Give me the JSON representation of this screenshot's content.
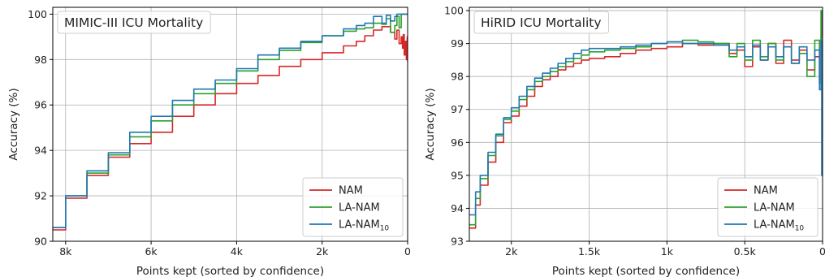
{
  "chart_data": [
    {
      "type": "line",
      "title": "MIMIC-III ICU Mortality",
      "xlabel": "Points kept (sorted by confidence)",
      "ylabel": "Accuracy (%)",
      "x_reversed": true,
      "xlim": [
        8300,
        0
      ],
      "ylim": [
        90,
        100.3
      ],
      "xticks": [
        8000,
        6000,
        4000,
        2000,
        0
      ],
      "xtick_labels": [
        "8k",
        "6k",
        "4k",
        "2k",
        "0"
      ],
      "yticks": [
        90,
        92,
        94,
        96,
        98,
        100
      ],
      "ytick_labels": [
        "90",
        "92",
        "94",
        "96",
        "98",
        "100"
      ],
      "grid": true,
      "legend_position": "lower-right",
      "series": [
        {
          "name": "NAM",
          "name_sub": "",
          "color": "#d62728",
          "x": [
            8300,
            8000,
            7500,
            7000,
            6500,
            6000,
            5500,
            5000,
            4500,
            4000,
            3500,
            3000,
            2500,
            2000,
            1500,
            1200,
            1000,
            800,
            600,
            400,
            300,
            250,
            200,
            150,
            120,
            100,
            80,
            50,
            30,
            10,
            0
          ],
          "y": [
            90.5,
            91.9,
            92.9,
            93.7,
            94.3,
            94.8,
            95.5,
            96.0,
            96.5,
            96.95,
            97.3,
            97.7,
            98.0,
            98.3,
            98.6,
            98.8,
            99.05,
            99.3,
            99.45,
            99.2,
            98.9,
            99.3,
            98.7,
            99.0,
            98.5,
            99.1,
            98.2,
            98.8,
            98.0,
            99.0,
            97.9
          ]
        },
        {
          "name": "LA-NAM",
          "name_sub": "",
          "color": "#2ca02c",
          "x": [
            8300,
            8000,
            7500,
            7000,
            6500,
            6000,
            5500,
            5000,
            4500,
            4000,
            3500,
            3000,
            2500,
            2000,
            1500,
            1200,
            1000,
            800,
            600,
            500,
            400,
            300,
            250,
            200,
            150,
            100,
            50,
            0
          ],
          "y": [
            90.6,
            92.0,
            93.0,
            93.8,
            94.6,
            95.3,
            96.0,
            96.5,
            96.95,
            97.5,
            98.0,
            98.4,
            98.75,
            99.05,
            99.25,
            99.35,
            99.4,
            99.6,
            99.55,
            99.8,
            99.2,
            99.5,
            99.9,
            99.4,
            100.0,
            100.0,
            100.0,
            100.0
          ]
        },
        {
          "name": "LA-NAM",
          "name_sub": "10",
          "color": "#1f77b4",
          "x": [
            8300,
            8000,
            7500,
            7000,
            6500,
            6000,
            5500,
            5000,
            4500,
            4000,
            3500,
            3000,
            2500,
            2000,
            1500,
            1200,
            1000,
            800,
            600,
            500,
            400,
            300,
            250,
            150,
            100,
            50,
            0
          ],
          "y": [
            90.6,
            92.0,
            93.1,
            93.9,
            94.8,
            95.5,
            96.2,
            96.7,
            97.1,
            97.6,
            98.2,
            98.5,
            98.8,
            99.05,
            99.35,
            99.5,
            99.6,
            99.9,
            99.6,
            99.95,
            99.7,
            99.9,
            100.0,
            100.0,
            100.0,
            100.0,
            100.0
          ]
        }
      ]
    },
    {
      "type": "line",
      "title": "HiRID ICU Mortality",
      "xlabel": "Points kept (sorted by confidence)",
      "ylabel": "Accuracy (%)",
      "x_reversed": true,
      "xlim": [
        2270,
        0
      ],
      "ylim": [
        93,
        100.1
      ],
      "xticks": [
        2000,
        1500,
        1000,
        500,
        0
      ],
      "xtick_labels": [
        "2k",
        "1.5k",
        "1k",
        "0.5k",
        "0"
      ],
      "yticks": [
        93,
        94,
        95,
        96,
        97,
        98,
        99,
        100
      ],
      "ytick_labels": [
        "93",
        "94",
        "95",
        "96",
        "97",
        "98",
        "99",
        "100"
      ],
      "grid": true,
      "legend_position": "lower-right",
      "series": [
        {
          "name": "NAM",
          "name_sub": "",
          "color": "#d62728",
          "x": [
            2270,
            2230,
            2200,
            2150,
            2100,
            2050,
            2000,
            1950,
            1900,
            1850,
            1800,
            1750,
            1700,
            1650,
            1600,
            1550,
            1500,
            1400,
            1300,
            1200,
            1100,
            1000,
            900,
            800,
            700,
            600,
            550,
            500,
            450,
            400,
            350,
            300,
            250,
            200,
            150,
            100,
            50,
            20,
            10,
            5,
            0
          ],
          "y": [
            93.4,
            94.1,
            94.7,
            95.4,
            96.0,
            96.6,
            96.8,
            97.1,
            97.4,
            97.7,
            97.9,
            98.0,
            98.2,
            98.3,
            98.4,
            98.5,
            98.55,
            98.6,
            98.7,
            98.8,
            98.85,
            98.9,
            99.0,
            98.95,
            99.0,
            98.7,
            98.8,
            98.3,
            98.9,
            98.5,
            99.0,
            98.4,
            99.1,
            98.5,
            98.8,
            98.2,
            98.6,
            97.9,
            99.2,
            100.0,
            100.0
          ]
        },
        {
          "name": "LA-NAM",
          "name_sub": "",
          "color": "#2ca02c",
          "x": [
            2270,
            2230,
            2200,
            2150,
            2100,
            2050,
            2000,
            1950,
            1900,
            1850,
            1800,
            1750,
            1700,
            1650,
            1600,
            1550,
            1500,
            1400,
            1300,
            1200,
            1100,
            1000,
            900,
            800,
            700,
            600,
            550,
            500,
            450,
            400,
            350,
            300,
            250,
            200,
            150,
            100,
            50,
            20,
            10,
            5,
            0
          ],
          "y": [
            93.5,
            94.3,
            94.9,
            95.6,
            96.2,
            96.7,
            96.95,
            97.3,
            97.6,
            97.85,
            98.0,
            98.15,
            98.3,
            98.45,
            98.55,
            98.65,
            98.75,
            98.8,
            98.85,
            98.9,
            99.0,
            99.05,
            99.1,
            99.05,
            99.0,
            98.6,
            99.0,
            98.5,
            99.1,
            98.6,
            99.0,
            98.5,
            98.9,
            98.4,
            98.7,
            98.0,
            99.1,
            97.8,
            100.0,
            100.0,
            100.0
          ]
        },
        {
          "name": "LA-NAM",
          "name_sub": "10",
          "color": "#1f77b4",
          "x": [
            2270,
            2230,
            2200,
            2150,
            2100,
            2050,
            2000,
            1950,
            1900,
            1850,
            1800,
            1750,
            1700,
            1650,
            1600,
            1550,
            1500,
            1400,
            1300,
            1200,
            1100,
            1000,
            900,
            800,
            700,
            600,
            550,
            500,
            450,
            400,
            350,
            300,
            250,
            200,
            150,
            100,
            50,
            20,
            10,
            5,
            0
          ],
          "y": [
            93.8,
            94.5,
            95.0,
            95.7,
            96.25,
            96.75,
            97.05,
            97.4,
            97.7,
            97.95,
            98.1,
            98.25,
            98.4,
            98.55,
            98.7,
            98.8,
            98.85,
            98.85,
            98.9,
            98.95,
            99.0,
            99.05,
            99.0,
            99.0,
            98.95,
            98.8,
            98.9,
            98.6,
            98.95,
            98.5,
            98.9,
            98.6,
            98.9,
            98.4,
            98.9,
            98.5,
            98.8,
            97.6,
            99.1,
            95.0,
            100.0
          ]
        }
      ]
    }
  ]
}
